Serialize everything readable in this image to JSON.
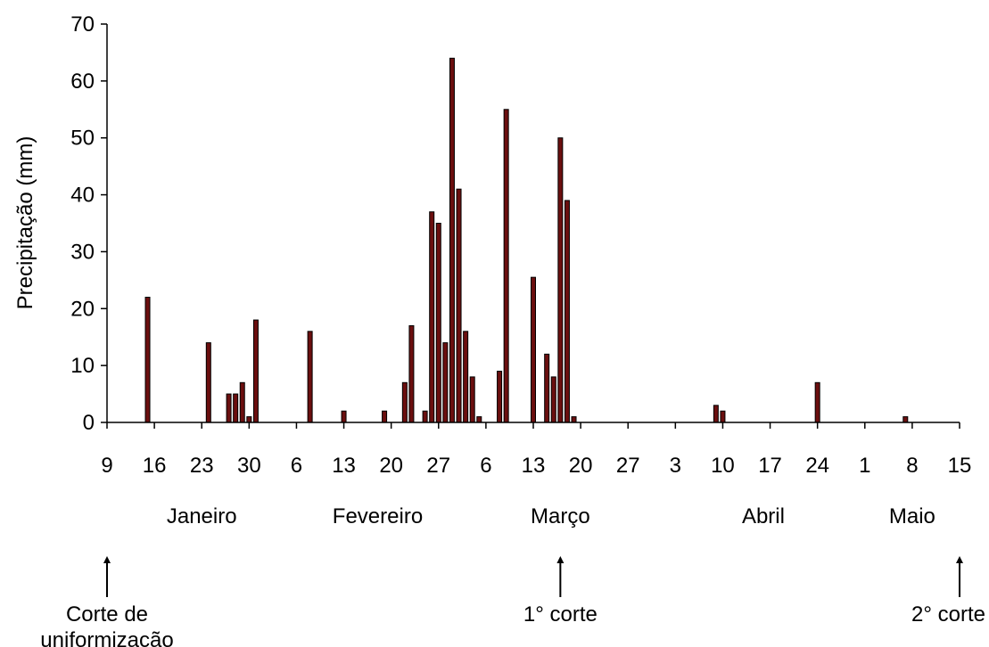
{
  "chart_data": {
    "type": "bar",
    "title": "",
    "xlabel": "",
    "ylabel": "Precipitação (mm)",
    "ylim": [
      0,
      70
    ],
    "yticks": [
      0,
      10,
      20,
      30,
      40,
      50,
      60,
      70
    ],
    "xlim": [
      "01-09",
      "05-15"
    ],
    "grid": false,
    "legend": "none",
    "bar_color": "#6b0f0f",
    "xtick_dates": [
      "01-09",
      "01-16",
      "01-23",
      "01-30",
      "02-06",
      "02-13",
      "02-20",
      "02-27",
      "03-06",
      "03-13",
      "03-20",
      "03-27",
      "04-03",
      "04-10",
      "04-17",
      "04-24",
      "05-01",
      "05-08",
      "05-15"
    ],
    "xtick_labels": [
      "9",
      "16",
      "23",
      "30",
      "6",
      "13",
      "20",
      "27",
      "6",
      "13",
      "20",
      "27",
      "3",
      "10",
      "17",
      "24",
      "1",
      "8",
      "15"
    ],
    "months": [
      {
        "label": "Janeiro",
        "center": "01-23"
      },
      {
        "label": "Fevereiro",
        "center": "02-18"
      },
      {
        "label": "Março",
        "center": "03-17"
      },
      {
        "label": "Abril",
        "center": "04-16"
      },
      {
        "label": "Maio",
        "center": "05-08"
      }
    ],
    "annotations": [
      {
        "text": "Corte de\nuniformização",
        "date": "01-09"
      },
      {
        "text": "1° corte",
        "date": "03-17"
      },
      {
        "text": "2° corte",
        "date": "05-15"
      }
    ],
    "series": [
      {
        "x": [
          "01-15",
          "01-24",
          "01-27",
          "01-28",
          "01-29",
          "01-30",
          "01-31",
          "02-08",
          "02-13",
          "02-19",
          "02-22",
          "02-23",
          "02-25",
          "02-26",
          "02-27",
          "02-28",
          "03-01",
          "03-02",
          "03-03",
          "03-04",
          "03-05",
          "03-08",
          "03-09",
          "03-13",
          "03-15",
          "03-16",
          "03-17",
          "03-18",
          "03-19",
          "04-09",
          "04-10",
          "04-24",
          "05-07"
        ],
        "values": [
          22,
          14,
          5,
          5,
          7,
          1,
          18,
          16,
          2,
          2,
          7,
          17,
          2,
          37,
          35,
          14,
          64,
          41,
          16,
          8,
          1,
          9,
          55,
          25.5,
          12,
          8,
          50,
          39,
          1,
          3,
          2,
          7,
          1
        ]
      }
    ]
  }
}
